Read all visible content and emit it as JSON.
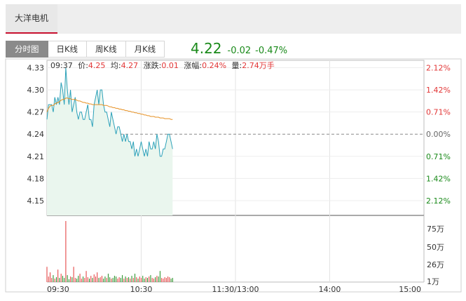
{
  "header": {
    "stock_name": "大洋电机"
  },
  "tabs": [
    {
      "label": "分时图",
      "active": true
    },
    {
      "label": "日K线",
      "active": false
    },
    {
      "label": "周K线",
      "active": false
    },
    {
      "label": "月K线",
      "active": false
    }
  ],
  "quote": {
    "price": "4.22",
    "change": "-0.02",
    "change_pct": "-0.47%"
  },
  "info": {
    "time": "09:37",
    "price_label": "价:",
    "price": "4.25",
    "avg_label": "均:",
    "avg": "4.27",
    "change_label": "涨跌:",
    "change": "0.01",
    "amp_label": "涨幅:",
    "amp": "0.24%",
    "vol_label": "量:",
    "vol": "2.74万手"
  },
  "colors": {
    "up": "#e23636",
    "down": "#1a8a1a",
    "price_line": "#2aa0b8",
    "avg_line": "#e69022",
    "fill": "#eaf6ee"
  },
  "chart_data": {
    "type": "line",
    "prev_close": 4.24,
    "ylim": [
      4.13,
      4.34
    ],
    "y_ticks": [
      "4.33",
      "4.30",
      "4.27",
      "4.24",
      "4.21",
      "4.18",
      "4.15"
    ],
    "pct_ticks": [
      "2.12%",
      "1.42%",
      "0.71%",
      "0.00%",
      "0.71%",
      "1.42%",
      "2.12%"
    ],
    "x_ticks": [
      "09:30",
      "10:30",
      "11:30/13:00",
      "14:00",
      "15:00"
    ],
    "vol_ticks": [
      "75万",
      "50万",
      "26万",
      "1万"
    ],
    "vol_max": 90,
    "price": [
      4.26,
      4.28,
      4.28,
      4.28,
      4.27,
      4.29,
      4.28,
      4.29,
      4.28,
      4.31,
      4.3,
      4.28,
      4.33,
      4.3,
      4.28,
      4.3,
      4.27,
      4.28,
      4.29,
      4.27,
      4.26,
      4.27,
      4.27,
      4.26,
      4.26,
      4.27,
      4.28,
      4.26,
      4.26,
      4.25,
      4.28,
      4.29,
      4.3,
      4.28,
      4.3,
      4.3,
      4.28,
      4.27,
      4.27,
      4.26,
      4.25,
      4.27,
      4.26,
      4.25,
      4.24,
      4.25,
      4.25,
      4.24,
      4.23,
      4.24,
      4.23,
      4.24,
      4.23,
      4.23,
      4.22,
      4.23,
      4.21,
      4.22,
      4.21,
      4.22,
      4.23,
      4.22,
      4.21,
      4.22,
      4.21,
      4.23,
      4.22,
      4.22,
      4.23,
      4.22,
      4.24,
      4.23,
      4.21,
      4.21,
      4.22,
      4.22,
      4.23,
      4.24,
      4.24,
      4.23,
      4.22
    ],
    "avg": [
      4.27,
      4.275,
      4.278,
      4.279,
      4.279,
      4.281,
      4.282,
      4.283,
      4.284,
      4.286,
      4.287,
      4.287,
      4.289,
      4.289,
      4.288,
      4.288,
      4.287,
      4.287,
      4.287,
      4.286,
      4.285,
      4.285,
      4.284,
      4.283,
      4.283,
      4.282,
      4.282,
      4.281,
      4.281,
      4.28,
      4.28,
      4.28,
      4.28,
      4.28,
      4.28,
      4.28,
      4.279,
      4.279,
      4.279,
      4.278,
      4.277,
      4.277,
      4.276,
      4.276,
      4.275,
      4.275,
      4.274,
      4.274,
      4.273,
      4.273,
      4.272,
      4.272,
      4.271,
      4.271,
      4.27,
      4.27,
      4.269,
      4.269,
      4.268,
      4.268,
      4.267,
      4.267,
      4.266,
      4.266,
      4.265,
      4.265,
      4.264,
      4.264,
      4.264,
      4.263,
      4.263,
      4.263,
      4.262,
      4.262,
      4.262,
      4.261,
      4.261,
      4.261,
      4.261,
      4.26,
      4.26
    ],
    "volume": [
      22,
      8,
      14,
      6,
      10,
      5,
      7,
      18,
      6,
      12,
      9,
      6,
      88,
      10,
      4,
      8,
      7,
      22,
      6,
      5,
      9,
      12,
      5,
      8,
      6,
      16,
      7,
      5,
      9,
      6,
      11,
      8,
      14,
      6,
      7,
      9,
      5,
      8,
      6,
      12,
      7,
      5,
      6,
      9,
      8,
      5,
      7,
      6,
      10,
      5,
      8,
      6,
      7,
      5,
      9,
      6,
      12,
      7,
      5,
      8,
      6,
      9,
      5,
      7,
      6,
      8,
      10,
      6,
      5,
      7,
      9,
      8,
      16,
      6,
      5,
      7,
      6,
      8,
      7,
      5,
      6
    ]
  }
}
